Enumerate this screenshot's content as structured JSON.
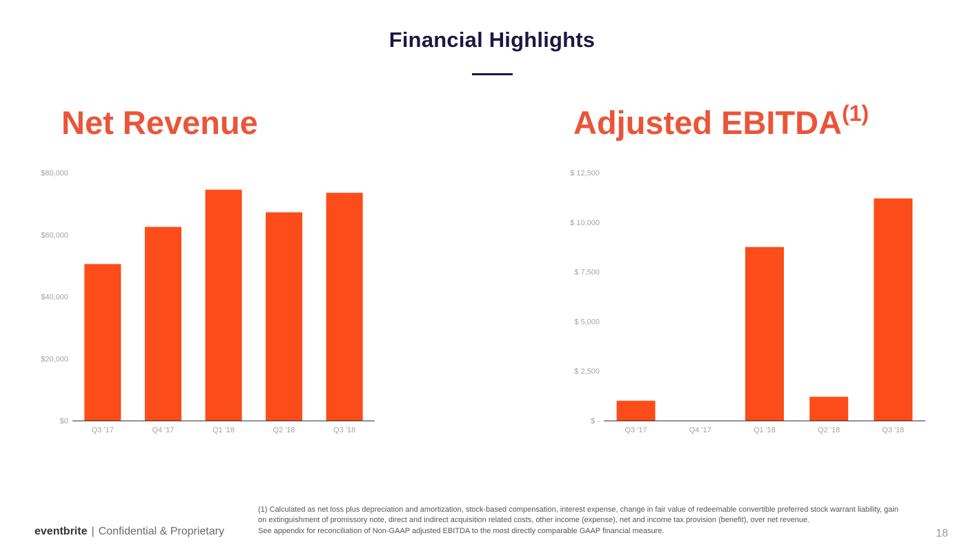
{
  "page": {
    "title": "Financial Highlights",
    "footer_brand": "eventbrite",
    "footer_separator": "|",
    "footer_confidential": "Confidential & Proprietary",
    "page_number": "18",
    "footnote_lines": [
      "(1) Calculated as net loss plus depreciation and amortization, stock-based compensation, interest expense, change in fair value of redeemable convertible preferred stock warrant liability, gain on extinguishment of promissory note, direct and indirect acquisition related costs, other income (expense), net and income tax provision (benefit), over net revenue.",
      "See appendix for reconciliation of Non-GAAP adjusted EBITDA to the most directly comparable GAAP financial measure."
    ],
    "colors": {
      "title": "#1d1741",
      "heading": "#ea5539",
      "bar": "#fc4c1a"
    }
  },
  "chart_data": [
    {
      "type": "bar",
      "title": "Net Revenue",
      "title_superscript": "",
      "categories": [
        "Q3 '17",
        "Q4 '17",
        "Q1 '18",
        "Q2 '18",
        "Q3 '18"
      ],
      "values": [
        50500,
        62500,
        74500,
        67200,
        73500
      ],
      "ylim": [
        0,
        80000
      ],
      "yticks": [
        0,
        20000,
        40000,
        60000,
        80000
      ],
      "ytick_labels": [
        "$0",
        "$20,000",
        "$40,000",
        "$60,000",
        "$80,000"
      ],
      "xlabel": "",
      "ylabel": "",
      "grid": false
    },
    {
      "type": "bar",
      "title": "Adjusted EBITDA",
      "title_superscript": "(1)",
      "categories": [
        "Q3 '17",
        "Q4 '17",
        "Q1 '18",
        "Q2 '18",
        "Q3 '18"
      ],
      "values": [
        1000,
        0,
        8750,
        1200,
        11200
      ],
      "ylim": [
        0,
        12500
      ],
      "yticks": [
        0,
        2500,
        5000,
        7500,
        10000,
        12500
      ],
      "ytick_labels": [
        "$ -",
        "$ 2,500",
        "$ 5,000",
        "$ 7,500",
        "$ 10,000",
        "$ 12,500"
      ],
      "xlabel": "",
      "ylabel": "",
      "grid": false
    }
  ]
}
